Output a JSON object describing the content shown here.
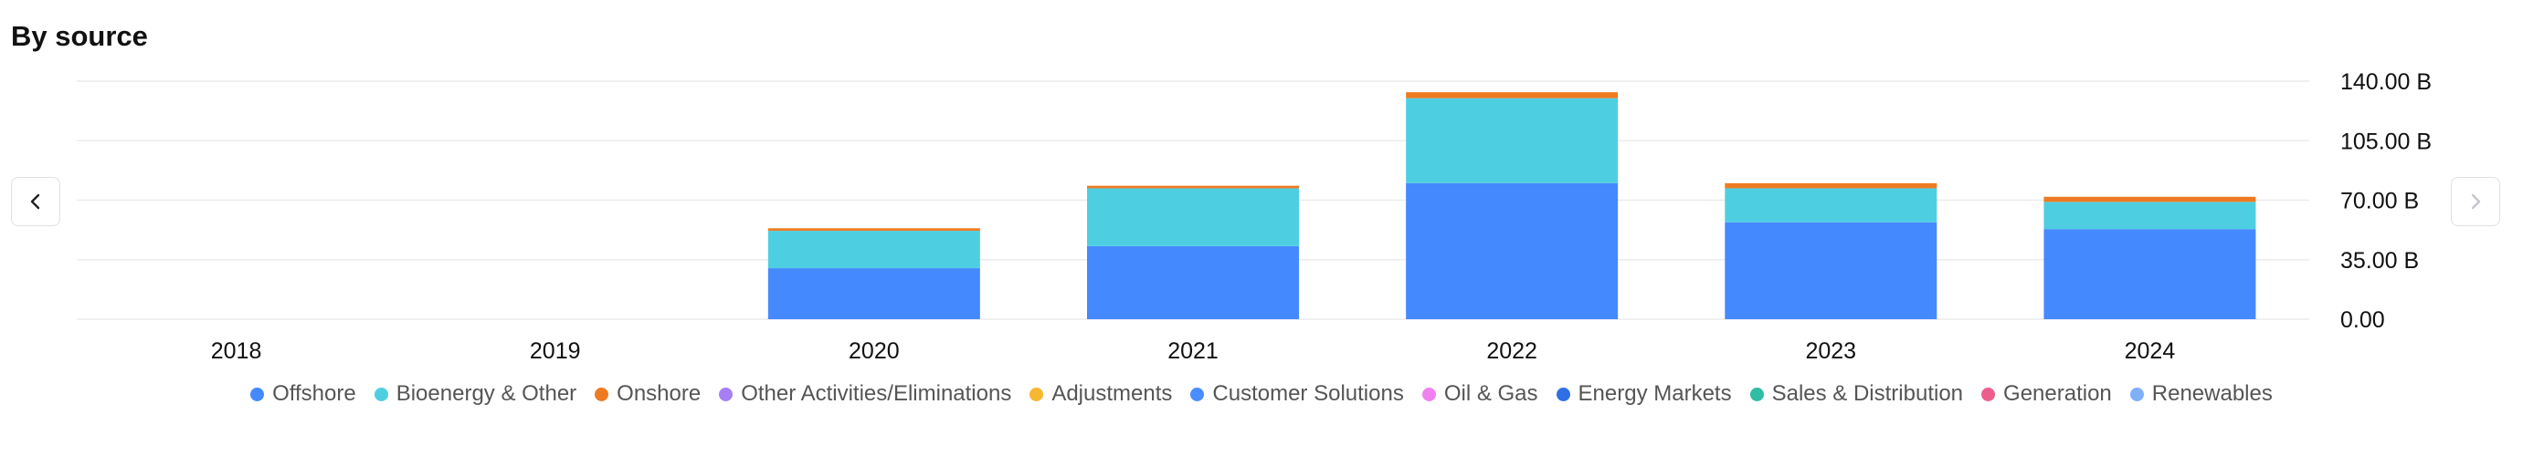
{
  "header": {
    "title": "By source"
  },
  "nav": {
    "prev_icon": "chevron-left-icon",
    "next_icon": "chevron-right-icon"
  },
  "chart_data": {
    "type": "bar",
    "stacked": true,
    "categories": [
      "2018",
      "2019",
      "2020",
      "2021",
      "2022",
      "2023",
      "2024"
    ],
    "series": [
      {
        "name": "Offshore",
        "color": "#4589ff",
        "values": [
          0,
          0,
          30,
          43,
          80,
          57,
          53
        ]
      },
      {
        "name": "Bioenergy & Other",
        "color": "#4ecfe1",
        "values": [
          0,
          0,
          22,
          34,
          50,
          20,
          16
        ]
      },
      {
        "name": "Onshore",
        "color": "#ee7b22",
        "values": [
          0,
          0,
          1.5,
          1.5,
          3.5,
          3,
          3
        ]
      },
      {
        "name": "Other Activities/Eliminations",
        "color": "#a67ff7",
        "values": [
          0,
          0,
          0,
          0,
          0,
          0,
          0
        ]
      },
      {
        "name": "Adjustments",
        "color": "#f7b731",
        "values": [
          0,
          0,
          0,
          0,
          0,
          0,
          0
        ]
      },
      {
        "name": "Customer Solutions",
        "color": "#4a8dff",
        "values": [
          0,
          0,
          0,
          0,
          0,
          0,
          0
        ]
      },
      {
        "name": "Oil & Gas",
        "color": "#ef82f0",
        "values": [
          0,
          0,
          0,
          0,
          0,
          0,
          0
        ]
      },
      {
        "name": "Energy Markets",
        "color": "#2f6fe6",
        "values": [
          0,
          0,
          0,
          0,
          0,
          0,
          0
        ]
      },
      {
        "name": "Sales & Distribution",
        "color": "#2fbda3",
        "values": [
          0,
          0,
          0,
          0,
          0,
          0,
          0
        ]
      },
      {
        "name": "Generation",
        "color": "#ec5f8c",
        "values": [
          0,
          0,
          0,
          0,
          0,
          0,
          0
        ]
      },
      {
        "name": "Renewables",
        "color": "#7fb0f7",
        "values": [
          0,
          0,
          0,
          0,
          0,
          0,
          0
        ]
      }
    ],
    "yticks": [
      0,
      35,
      70,
      105,
      140
    ],
    "ytick_labels": [
      "0.00",
      "35.00 B",
      "70.00 B",
      "105.00 B",
      "140.00 B"
    ],
    "ylim": [
      0,
      140
    ],
    "yaxis_position": "right",
    "grid": true,
    "legend_position": "bottom"
  }
}
